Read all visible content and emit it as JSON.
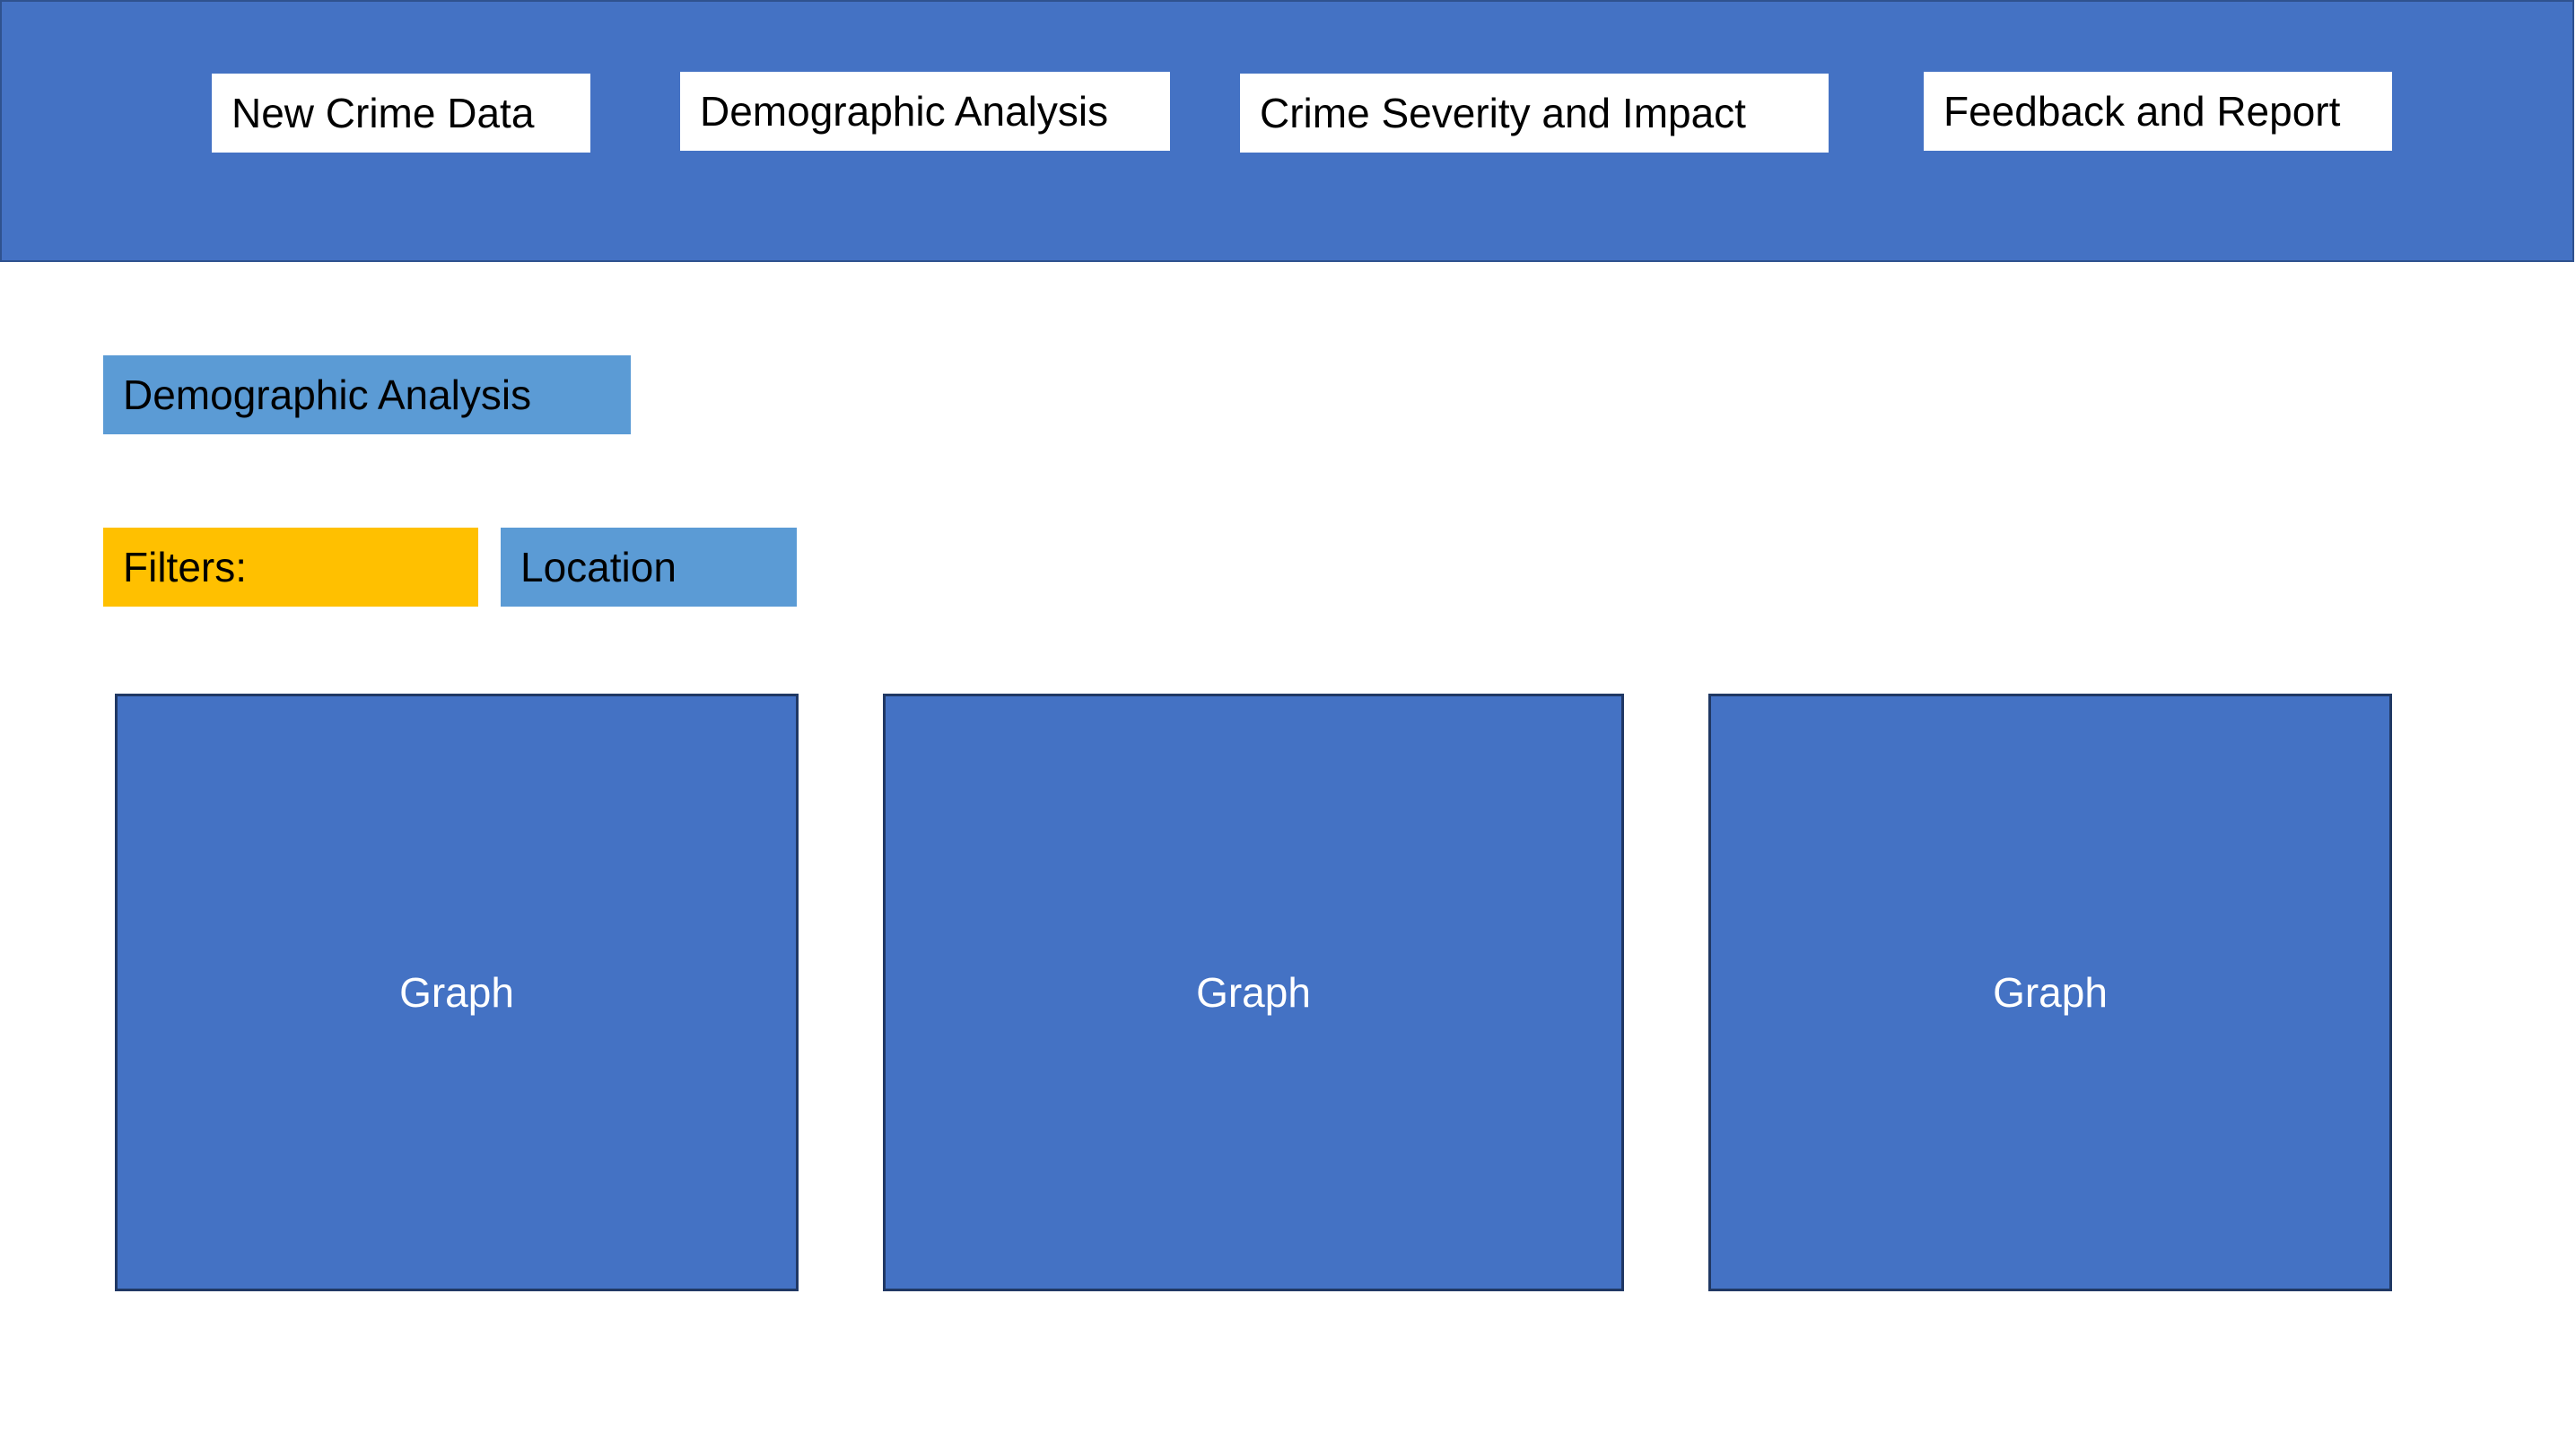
{
  "nav": {
    "items": [
      {
        "label": "New Crime Data"
      },
      {
        "label": "Demographic Analysis"
      },
      {
        "label": "Crime Severity and Impact"
      },
      {
        "label": "Feedback and Report"
      }
    ]
  },
  "main": {
    "section_title": "Demographic Analysis",
    "filters_label": "Filters:",
    "filters": [
      {
        "label": "Location"
      }
    ],
    "graphs": [
      {
        "label": "Graph"
      },
      {
        "label": "Graph"
      },
      {
        "label": "Graph"
      }
    ]
  },
  "colors": {
    "header": "#4472C4",
    "section_title": "#5B9BD5",
    "filters_label": "#FFC000",
    "filter_chip": "#5B9BD5",
    "graph": "#4472C4"
  }
}
